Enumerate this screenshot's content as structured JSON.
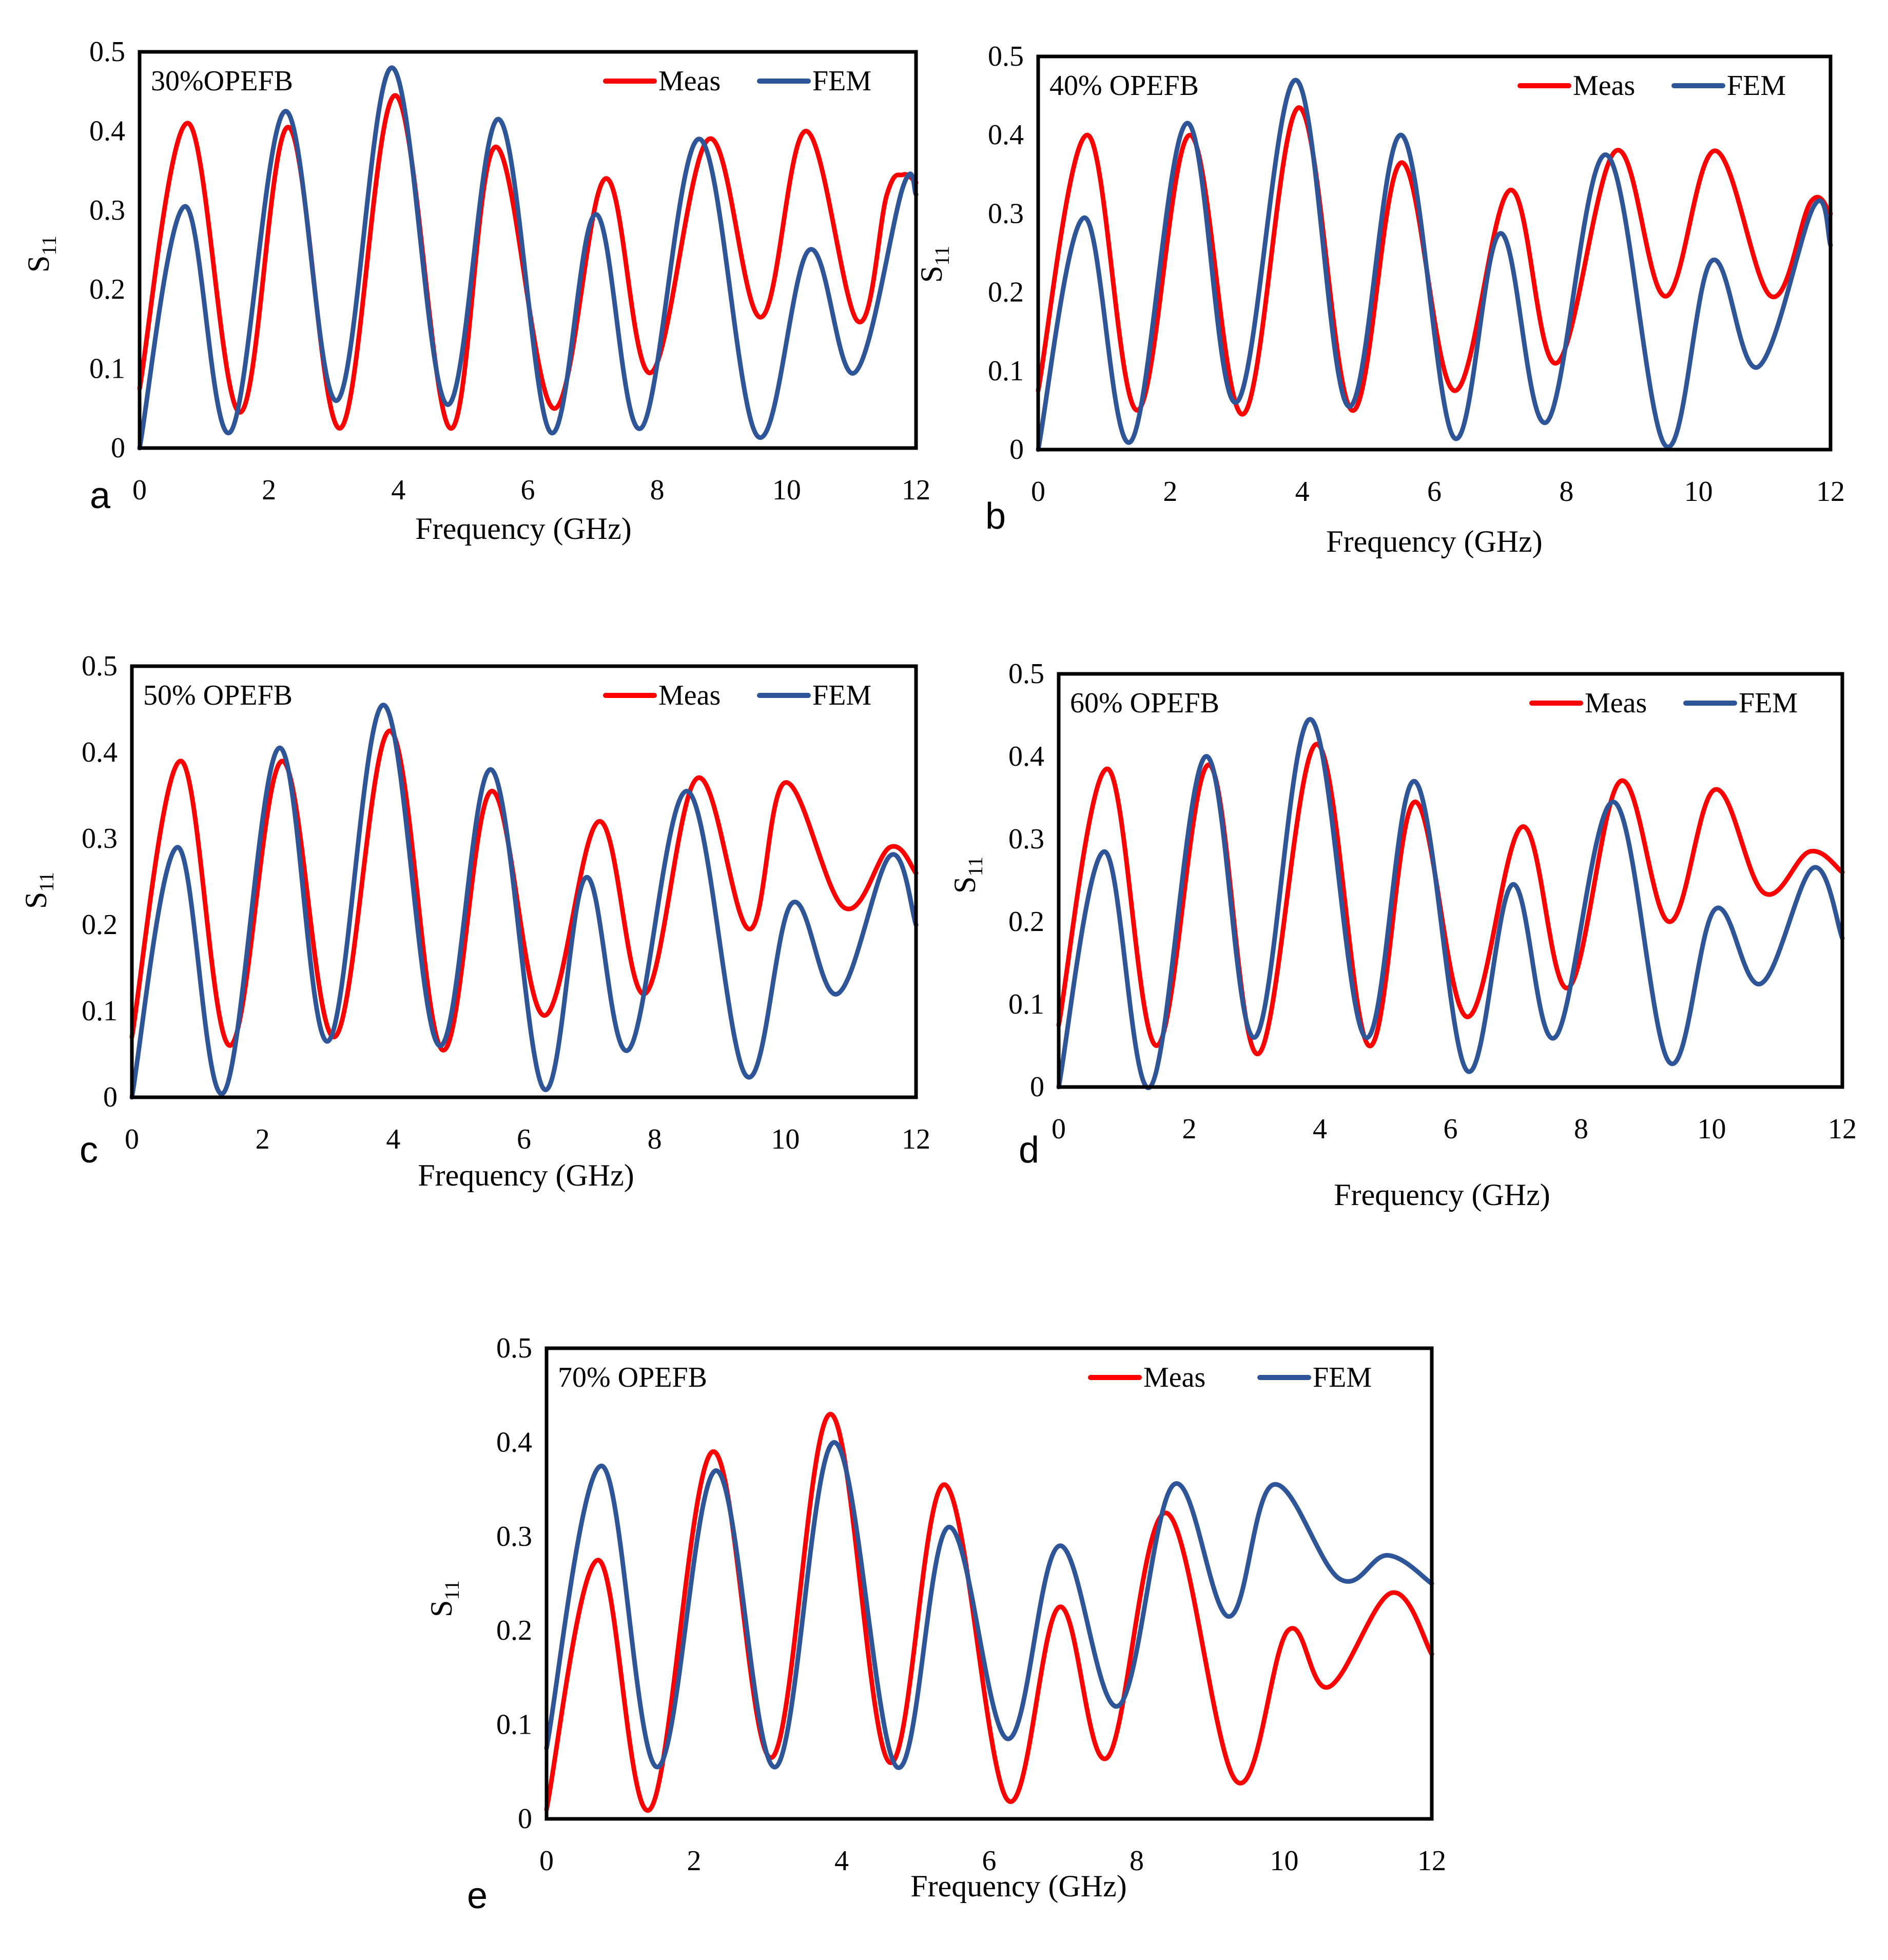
{
  "figure": {
    "colors": {
      "meas": "#ff0000",
      "fem": "#2e5597",
      "frame": "#000000",
      "background": "#ffffff"
    }
  },
  "chart_data": [
    {
      "id": "a",
      "type": "line",
      "panel_label": "a",
      "inset_label": "30%OPEFB",
      "xlabel": "Frequency (GHz)",
      "ylabel": "S",
      "ylabel_sub": "11",
      "xlim": [
        0,
        12
      ],
      "ylim": [
        0,
        0.5
      ],
      "xticks": [
        "0",
        "2",
        "4",
        "6",
        "8",
        "10",
        "12"
      ],
      "yticks": [
        "0",
        "0.1",
        "0.2",
        "0.3",
        "0.4",
        "0.5"
      ],
      "legend": [
        "Meas",
        "FEM"
      ],
      "series": [
        {
          "name": "Meas",
          "color": "#ff0000",
          "points": [
            [
              0,
              0.075
            ],
            [
              0.75,
              0.41
            ],
            [
              1.55,
              0.045
            ],
            [
              2.3,
              0.405
            ],
            [
              3.1,
              0.025
            ],
            [
              3.95,
              0.445
            ],
            [
              4.8,
              0.025
            ],
            [
              5.5,
              0.38
            ],
            [
              6.4,
              0.05
            ],
            [
              7.2,
              0.34
            ],
            [
              7.9,
              0.095
            ],
            [
              8.8,
              0.39
            ],
            [
              9.6,
              0.165
            ],
            [
              10.3,
              0.4
            ],
            [
              11.1,
              0.16
            ],
            [
              11.55,
              0.32
            ],
            [
              11.8,
              0.345
            ],
            [
              12,
              0.335
            ]
          ]
        },
        {
          "name": "FEM",
          "color": "#2e5597",
          "points": [
            [
              0,
              0
            ],
            [
              0.7,
              0.305
            ],
            [
              1.4,
              0.02
            ],
            [
              2.25,
              0.425
            ],
            [
              3.05,
              0.06
            ],
            [
              3.9,
              0.48
            ],
            [
              4.75,
              0.055
            ],
            [
              5.55,
              0.415
            ],
            [
              6.35,
              0.02
            ],
            [
              7.05,
              0.295
            ],
            [
              7.75,
              0.025
            ],
            [
              8.65,
              0.39
            ],
            [
              9.55,
              0.015
            ],
            [
              10.35,
              0.25
            ],
            [
              11.05,
              0.095
            ],
            [
              11.8,
              0.33
            ],
            [
              12,
              0.32
            ]
          ]
        }
      ]
    },
    {
      "id": "b",
      "type": "line",
      "panel_label": "b",
      "inset_label": "40% OPEFB",
      "xlabel": "Frequency (GHz)",
      "ylabel": "S",
      "ylabel_sub": "11",
      "xlim": [
        0,
        12
      ],
      "ylim": [
        0,
        0.5
      ],
      "xticks": [
        "0",
        "2",
        "4",
        "6",
        "8",
        "10",
        "12"
      ],
      "yticks": [
        "0",
        "0.1",
        "0.2",
        "0.3",
        "0.4",
        "0.5"
      ],
      "legend": [
        "Meas",
        "FEM"
      ],
      "series": [
        {
          "name": "Meas",
          "color": "#ff0000",
          "points": [
            [
              0,
              0.075
            ],
            [
              0.75,
              0.4
            ],
            [
              1.5,
              0.05
            ],
            [
              2.3,
              0.4
            ],
            [
              3.1,
              0.045
            ],
            [
              3.95,
              0.435
            ],
            [
              4.75,
              0.05
            ],
            [
              5.5,
              0.365
            ],
            [
              6.3,
              0.075
            ],
            [
              7.15,
              0.33
            ],
            [
              7.85,
              0.11
            ],
            [
              8.75,
              0.38
            ],
            [
              9.5,
              0.195
            ],
            [
              10.25,
              0.38
            ],
            [
              11.1,
              0.195
            ],
            [
              11.7,
              0.315
            ],
            [
              12,
              0.3
            ]
          ]
        },
        {
          "name": "FEM",
          "color": "#2e5597",
          "points": [
            [
              0,
              0
            ],
            [
              0.7,
              0.295
            ],
            [
              1.4,
              0.01
            ],
            [
              2.25,
              0.415
            ],
            [
              3.0,
              0.06
            ],
            [
              3.9,
              0.47
            ],
            [
              4.7,
              0.055
            ],
            [
              5.5,
              0.4
            ],
            [
              6.3,
              0.015
            ],
            [
              7.0,
              0.275
            ],
            [
              7.7,
              0.035
            ],
            [
              8.6,
              0.375
            ],
            [
              9.5,
              0.005
            ],
            [
              10.2,
              0.24
            ],
            [
              10.9,
              0.105
            ],
            [
              11.75,
              0.31
            ],
            [
              12,
              0.26
            ]
          ]
        }
      ]
    },
    {
      "id": "c",
      "type": "line",
      "panel_label": "c",
      "inset_label": "50% OPEFB",
      "xlabel": "Frequency (GHz)",
      "ylabel": "S",
      "ylabel_sub": "11",
      "xlim": [
        0,
        12
      ],
      "ylim": [
        0,
        0.5
      ],
      "xticks": [
        "0",
        "2",
        "4",
        "6",
        "8",
        "10",
        "12"
      ],
      "yticks": [
        "0",
        "0.1",
        "0.2",
        "0.3",
        "0.4",
        "0.5"
      ],
      "legend": [
        "Meas",
        "FEM"
      ],
      "series": [
        {
          "name": "Meas",
          "color": "#ff0000",
          "points": [
            [
              0,
              0.07
            ],
            [
              0.75,
              0.39
            ],
            [
              1.5,
              0.06
            ],
            [
              2.3,
              0.39
            ],
            [
              3.1,
              0.07
            ],
            [
              3.95,
              0.425
            ],
            [
              4.75,
              0.055
            ],
            [
              5.5,
              0.355
            ],
            [
              6.3,
              0.095
            ],
            [
              7.15,
              0.32
            ],
            [
              7.85,
              0.12
            ],
            [
              8.65,
              0.37
            ],
            [
              9.45,
              0.195
            ],
            [
              10.0,
              0.365
            ],
            [
              10.9,
              0.22
            ],
            [
              11.6,
              0.29
            ],
            [
              12,
              0.26
            ]
          ]
        },
        {
          "name": "FEM",
          "color": "#2e5597",
          "points": [
            [
              0,
              0
            ],
            [
              0.7,
              0.29
            ],
            [
              1.4,
              0.005
            ],
            [
              2.25,
              0.405
            ],
            [
              3.0,
              0.065
            ],
            [
              3.85,
              0.455
            ],
            [
              4.7,
              0.06
            ],
            [
              5.5,
              0.38
            ],
            [
              6.3,
              0.01
            ],
            [
              6.95,
              0.255
            ],
            [
              7.6,
              0.055
            ],
            [
              8.5,
              0.355
            ],
            [
              9.4,
              0.025
            ],
            [
              10.1,
              0.225
            ],
            [
              10.8,
              0.12
            ],
            [
              11.6,
              0.28
            ],
            [
              12,
              0.2
            ]
          ]
        }
      ]
    },
    {
      "id": "d",
      "type": "line",
      "panel_label": "d",
      "inset_label": "60% OPEFB",
      "xlabel": "Frequency (GHz)",
      "ylabel": "S",
      "ylabel_sub": "11",
      "xlim": [
        0,
        12
      ],
      "ylim": [
        0,
        0.5
      ],
      "xticks": [
        "0",
        "2",
        "4",
        "6",
        "8",
        "10",
        "12"
      ],
      "yticks": [
        "0",
        "0.1",
        "0.2",
        "0.3",
        "0.4",
        "0.5"
      ],
      "legend": [
        "Meas",
        "FEM"
      ],
      "series": [
        {
          "name": "Meas",
          "color": "#ff0000",
          "points": [
            [
              0,
              0.075
            ],
            [
              0.75,
              0.385
            ],
            [
              1.5,
              0.05
            ],
            [
              2.3,
              0.39
            ],
            [
              3.05,
              0.04
            ],
            [
              3.95,
              0.415
            ],
            [
              4.75,
              0.05
            ],
            [
              5.45,
              0.345
            ],
            [
              6.25,
              0.085
            ],
            [
              7.1,
              0.315
            ],
            [
              7.8,
              0.12
            ],
            [
              8.6,
              0.37
            ],
            [
              9.35,
              0.2
            ],
            [
              10.05,
              0.36
            ],
            [
              10.8,
              0.235
            ],
            [
              11.5,
              0.285
            ],
            [
              12,
              0.26
            ]
          ]
        },
        {
          "name": "FEM",
          "color": "#2e5597",
          "points": [
            [
              0,
              0
            ],
            [
              0.7,
              0.285
            ],
            [
              1.4,
              0.0
            ],
            [
              2.25,
              0.4
            ],
            [
              3.0,
              0.06
            ],
            [
              3.85,
              0.445
            ],
            [
              4.7,
              0.06
            ],
            [
              5.45,
              0.37
            ],
            [
              6.25,
              0.02
            ],
            [
              6.95,
              0.245
            ],
            [
              7.6,
              0.06
            ],
            [
              8.5,
              0.345
            ],
            [
              9.35,
              0.03
            ],
            [
              10.05,
              0.215
            ],
            [
              10.75,
              0.125
            ],
            [
              11.55,
              0.265
            ],
            [
              12,
              0.18
            ]
          ]
        }
      ]
    },
    {
      "id": "e",
      "type": "line",
      "panel_label": "e",
      "inset_label": "70% OPEFB",
      "xlabel": "Frequency (GHz)",
      "ylabel": "S",
      "ylabel_sub": "11",
      "xlim": [
        0,
        12
      ],
      "ylim": [
        0,
        0.5
      ],
      "xticks": [
        "0",
        "2",
        "4",
        "6",
        "8",
        "10",
        "12"
      ],
      "yticks": [
        "0",
        "0.1",
        "0.2",
        "0.3",
        "0.4",
        "0.5"
      ],
      "legend": [
        "Meas",
        "FEM"
      ],
      "series": [
        {
          "name": "Meas",
          "color": "#ff0000",
          "points": [
            [
              0,
              0.01
            ],
            [
              0.7,
              0.275
            ],
            [
              1.4,
              0.01
            ],
            [
              2.25,
              0.39
            ],
            [
              3.05,
              0.065
            ],
            [
              3.85,
              0.43
            ],
            [
              4.65,
              0.06
            ],
            [
              5.4,
              0.355
            ],
            [
              6.25,
              0.02
            ],
            [
              6.95,
              0.225
            ],
            [
              7.6,
              0.065
            ],
            [
              8.4,
              0.325
            ],
            [
              9.35,
              0.04
            ],
            [
              10.05,
              0.2
            ],
            [
              10.6,
              0.14
            ],
            [
              11.45,
              0.24
            ],
            [
              12,
              0.175
            ]
          ]
        },
        {
          "name": "FEM",
          "color": "#2e5597",
          "points": [
            [
              0,
              0.075
            ],
            [
              0.75,
              0.375
            ],
            [
              1.5,
              0.055
            ],
            [
              2.3,
              0.37
            ],
            [
              3.1,
              0.055
            ],
            [
              3.9,
              0.4
            ],
            [
              4.75,
              0.055
            ],
            [
              5.45,
              0.31
            ],
            [
              6.25,
              0.085
            ],
            [
              6.95,
              0.29
            ],
            [
              7.75,
              0.12
            ],
            [
              8.5,
              0.355
            ],
            [
              9.25,
              0.215
            ],
            [
              9.85,
              0.355
            ],
            [
              10.75,
              0.255
            ],
            [
              11.4,
              0.28
            ],
            [
              12,
              0.25
            ]
          ]
        }
      ]
    }
  ]
}
